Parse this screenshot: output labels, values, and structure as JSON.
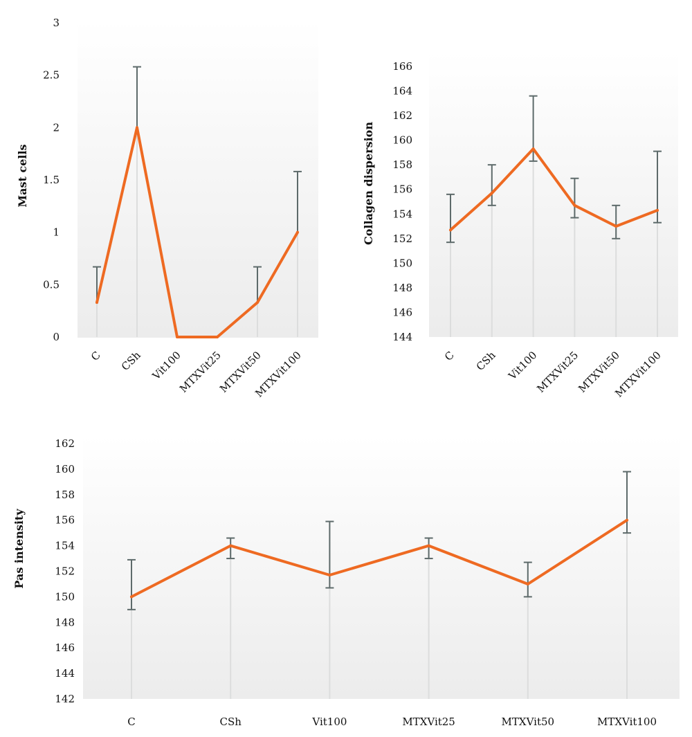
{
  "colors": {
    "line": "#EE6A22",
    "error_bar": "#5D6A6A",
    "drop_line": "#DCDDDD",
    "panel_top": "#FFFFFF",
    "panel_bottom": "#ECECEC"
  },
  "chart_data": [
    {
      "type": "line",
      "ylabel": "Mast cells",
      "categories": [
        "C",
        "CSh",
        "Vit100",
        "MTXVit25",
        "MTXVit50",
        "MTXVit100"
      ],
      "values": [
        0.33,
        2.0,
        0.0,
        0.0,
        0.33,
        1.0
      ],
      "error_upper": [
        0.67,
        2.58,
        null,
        null,
        0.67,
        1.58
      ],
      "yticks": [
        "0",
        "0.5",
        "1",
        "1.5",
        "2",
        "2.5",
        "3"
      ],
      "ylim": [
        0,
        3
      ],
      "xtick_rotation": "diagonal",
      "grid": false
    },
    {
      "type": "line",
      "ylabel": "Collagen dispersion",
      "categories": [
        "C",
        "CSh",
        "Vit100",
        "MTXVit25",
        "MTXVit50",
        "MTXVit100"
      ],
      "values": [
        152.7,
        155.7,
        159.3,
        154.7,
        153.0,
        154.3
      ],
      "error_upper": [
        155.6,
        158.0,
        163.6,
        156.9,
        154.7,
        159.1
      ],
      "error_lower": [
        151.7,
        154.7,
        158.3,
        153.7,
        152.0,
        153.3
      ],
      "yticks": [
        "144",
        "146",
        "148",
        "150",
        "152",
        "154",
        "156",
        "158",
        "160",
        "162",
        "164",
        "166"
      ],
      "ylim": [
        144,
        166
      ],
      "xtick_rotation": "diagonal",
      "grid": false
    },
    {
      "type": "line",
      "ylabel": "Pas intensity",
      "categories": [
        "C",
        "CSh",
        "Vit100",
        "MTXVit25",
        "MTXVit50",
        "MTXVit100"
      ],
      "values": [
        150.0,
        154.0,
        151.7,
        154.0,
        151.0,
        156.0
      ],
      "error_upper": [
        152.9,
        154.6,
        155.9,
        154.6,
        152.7,
        159.8
      ],
      "error_lower": [
        149.0,
        153.0,
        150.7,
        153.0,
        150.0,
        155.0
      ],
      "yticks": [
        "142",
        "144",
        "146",
        "148",
        "150",
        "152",
        "154",
        "156",
        "158",
        "160",
        "162"
      ],
      "ylim": [
        142,
        162
      ],
      "xtick_rotation": "horizontal",
      "grid": false
    }
  ]
}
